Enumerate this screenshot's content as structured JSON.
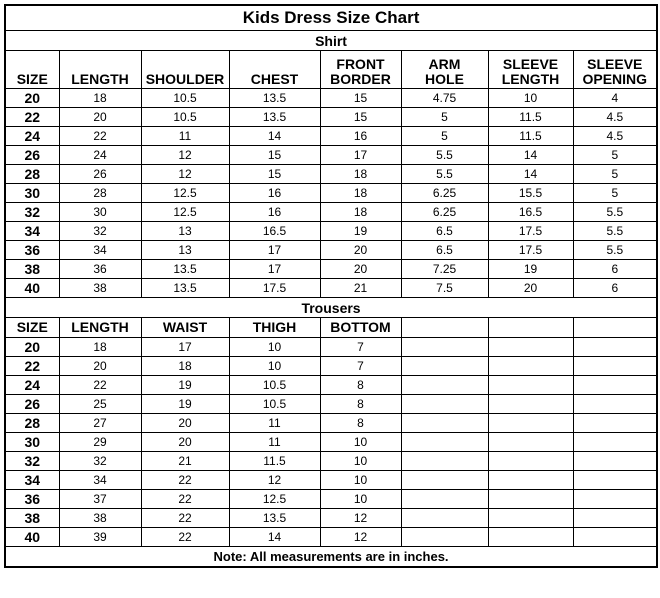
{
  "title": "Kids Dress Size Chart",
  "shirt": {
    "section_title": "Shirt",
    "headers": [
      [
        "SIZE"
      ],
      [
        "LENGTH"
      ],
      [
        "SHOULDER"
      ],
      [
        "CHEST"
      ],
      [
        "FRONT",
        "BORDER"
      ],
      [
        "ARM",
        "HOLE"
      ],
      [
        "SLEEVE",
        "LENGTH"
      ],
      [
        "SLEEVE",
        "OPENING"
      ]
    ],
    "rows": [
      [
        "20",
        "18",
        "10.5",
        "13.5",
        "15",
        "4.75",
        "10",
        "4"
      ],
      [
        "22",
        "20",
        "10.5",
        "13.5",
        "15",
        "5",
        "11.5",
        "4.5"
      ],
      [
        "24",
        "22",
        "11",
        "14",
        "16",
        "5",
        "11.5",
        "4.5"
      ],
      [
        "26",
        "24",
        "12",
        "15",
        "17",
        "5.5",
        "14",
        "5"
      ],
      [
        "28",
        "26",
        "12",
        "15",
        "18",
        "5.5",
        "14",
        "5"
      ],
      [
        "30",
        "28",
        "12.5",
        "16",
        "18",
        "6.25",
        "15.5",
        "5"
      ],
      [
        "32",
        "30",
        "12.5",
        "16",
        "18",
        "6.25",
        "16.5",
        "5.5"
      ],
      [
        "34",
        "32",
        "13",
        "16.5",
        "19",
        "6.5",
        "17.5",
        "5.5"
      ],
      [
        "36",
        "34",
        "13",
        "17",
        "20",
        "6.5",
        "17.5",
        "5.5"
      ],
      [
        "38",
        "36",
        "13.5",
        "17",
        "20",
        "7.25",
        "19",
        "6"
      ],
      [
        "40",
        "38",
        "13.5",
        "17.5",
        "21",
        "7.5",
        "20",
        "6"
      ]
    ]
  },
  "trousers": {
    "section_title": "Trousers",
    "headers": [
      "SIZE",
      "LENGTH",
      "WAIST",
      "THIGH",
      "BOTTOM",
      "",
      "",
      ""
    ],
    "rows": [
      [
        "20",
        "18",
        "17",
        "10",
        "7",
        "",
        "",
        ""
      ],
      [
        "22",
        "20",
        "18",
        "10",
        "7",
        "",
        "",
        ""
      ],
      [
        "24",
        "22",
        "19",
        "10.5",
        "8",
        "",
        "",
        ""
      ],
      [
        "26",
        "25",
        "19",
        "10.5",
        "8",
        "",
        "",
        ""
      ],
      [
        "28",
        "27",
        "20",
        "11",
        "8",
        "",
        "",
        ""
      ],
      [
        "30",
        "29",
        "20",
        "11",
        "10",
        "",
        "",
        ""
      ],
      [
        "32",
        "32",
        "21",
        "11.5",
        "10",
        "",
        "",
        ""
      ],
      [
        "34",
        "34",
        "22",
        "12",
        "10",
        "",
        "",
        ""
      ],
      [
        "36",
        "37",
        "22",
        "12.5",
        "10",
        "",
        "",
        ""
      ],
      [
        "38",
        "38",
        "22",
        "13.5",
        "12",
        "",
        "",
        ""
      ],
      [
        "40",
        "39",
        "22",
        "14",
        "12",
        "",
        "",
        ""
      ]
    ]
  },
  "note": "Note: All measurements are in inches."
}
